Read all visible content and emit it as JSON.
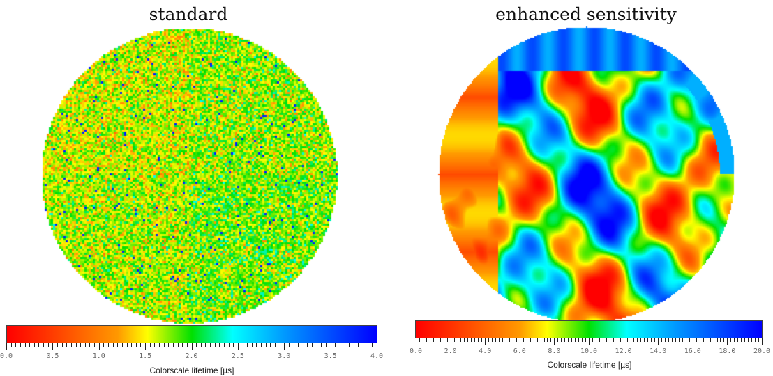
{
  "chart_data": [
    {
      "type": "heatmap",
      "title": "standard",
      "description_values": "noisy lifetime map, mostly 1.0-2.5",
      "colorbar": {
        "label": "Colorscale lifetime [µs]",
        "range": [
          0,
          4
        ],
        "ticks": [
          "0.0",
          "0.5",
          "1.0",
          "1.5",
          "2.0",
          "2.5",
          "3.0",
          "3.5",
          "4.0"
        ]
      },
      "colormap": [
        "#ff0000",
        "#ff9900",
        "#ffff00",
        "#00e000",
        "#00ffff",
        "#0099ff",
        "#0000ff"
      ]
    },
    {
      "type": "heatmap",
      "title": "enhanced sensitivity",
      "colorbar": {
        "label": "Colorscale lifetime [µs]",
        "range": [
          0,
          20
        ],
        "ticks": [
          "0.0",
          "2.0",
          "4.0",
          "6.0",
          "8.0",
          "10.0",
          "12.0",
          "14.0",
          "16.0",
          "18.0",
          "20.0"
        ]
      },
      "colormap": [
        "#ff0000",
        "#ff9900",
        "#ffff00",
        "#00e000",
        "#00ffff",
        "#0099ff",
        "#0000ff"
      ]
    }
  ]
}
